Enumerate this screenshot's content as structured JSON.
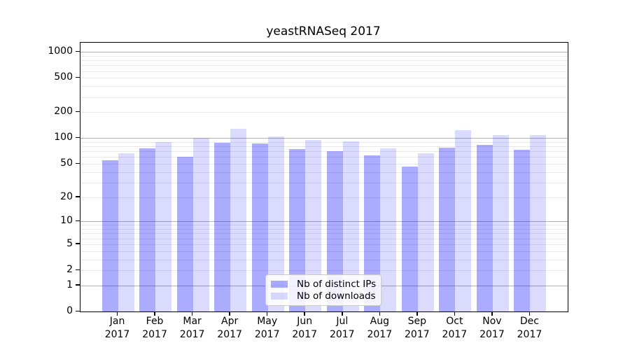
{
  "title": "yeastRNASeq 2017",
  "colors": {
    "bar_ips": "rgba(0,0,255,0.33)",
    "bar_downloads": "rgba(0,0,255,0.14)",
    "grid_minor": "#e8e8e8",
    "grid_major": "#b2b2b2",
    "axis": "#000000",
    "legend_border": "#cccccc"
  },
  "legend": {
    "items": [
      {
        "label": "Nb of distinct IPs",
        "color_key": "bar_ips"
      },
      {
        "label": "Nb of downloads",
        "color_key": "bar_downloads"
      }
    ]
  },
  "y_axis": {
    "tick_labels": [
      "0",
      "1",
      "2",
      "5",
      "10",
      "20",
      "50",
      "100",
      "200",
      "500",
      "1000"
    ],
    "tick_values": [
      0,
      1,
      2,
      5,
      10,
      20,
      50,
      100,
      200,
      500,
      1000
    ],
    "major_gridlines": [
      1,
      10,
      100,
      1000
    ],
    "minor_gridlines": [
      2,
      3,
      4,
      5,
      6,
      7,
      8,
      9,
      20,
      30,
      40,
      50,
      60,
      70,
      80,
      90,
      200,
      300,
      400,
      500,
      600,
      700,
      800,
      900
    ],
    "scale": "log1p",
    "max": 1283
  },
  "x_axis": {
    "months": [
      "Jan",
      "Feb",
      "Mar",
      "Apr",
      "May",
      "Jun",
      "Jul",
      "Aug",
      "Sep",
      "Oct",
      "Nov",
      "Dec"
    ],
    "year": "2017"
  },
  "chart_data": {
    "type": "bar",
    "categories": [
      "Jan 2017",
      "Feb 2017",
      "Mar 2017",
      "Apr 2017",
      "May 2017",
      "Jun 2017",
      "Jul 2017",
      "Aug 2017",
      "Sep 2017",
      "Oct 2017",
      "Nov 2017",
      "Dec 2017"
    ],
    "series": [
      {
        "name": "Nb of distinct IPs",
        "values": [
          55,
          76,
          60,
          88,
          87,
          74,
          70,
          63,
          46,
          78,
          83,
          73
        ]
      },
      {
        "name": "Nb of downloads",
        "values": [
          66,
          90,
          101,
          128,
          105,
          95,
          92,
          76,
          67,
          124,
          109,
          109
        ]
      }
    ],
    "title": "yeastRNASeq 2017",
    "xlabel": "",
    "ylabel": "",
    "yscale": "log1p",
    "ylim": [
      0,
      1283
    ],
    "ytick_values": [
      0,
      1,
      2,
      5,
      10,
      20,
      50,
      100,
      200,
      500,
      1000
    ],
    "grid": true,
    "legend_position": "lower center"
  }
}
